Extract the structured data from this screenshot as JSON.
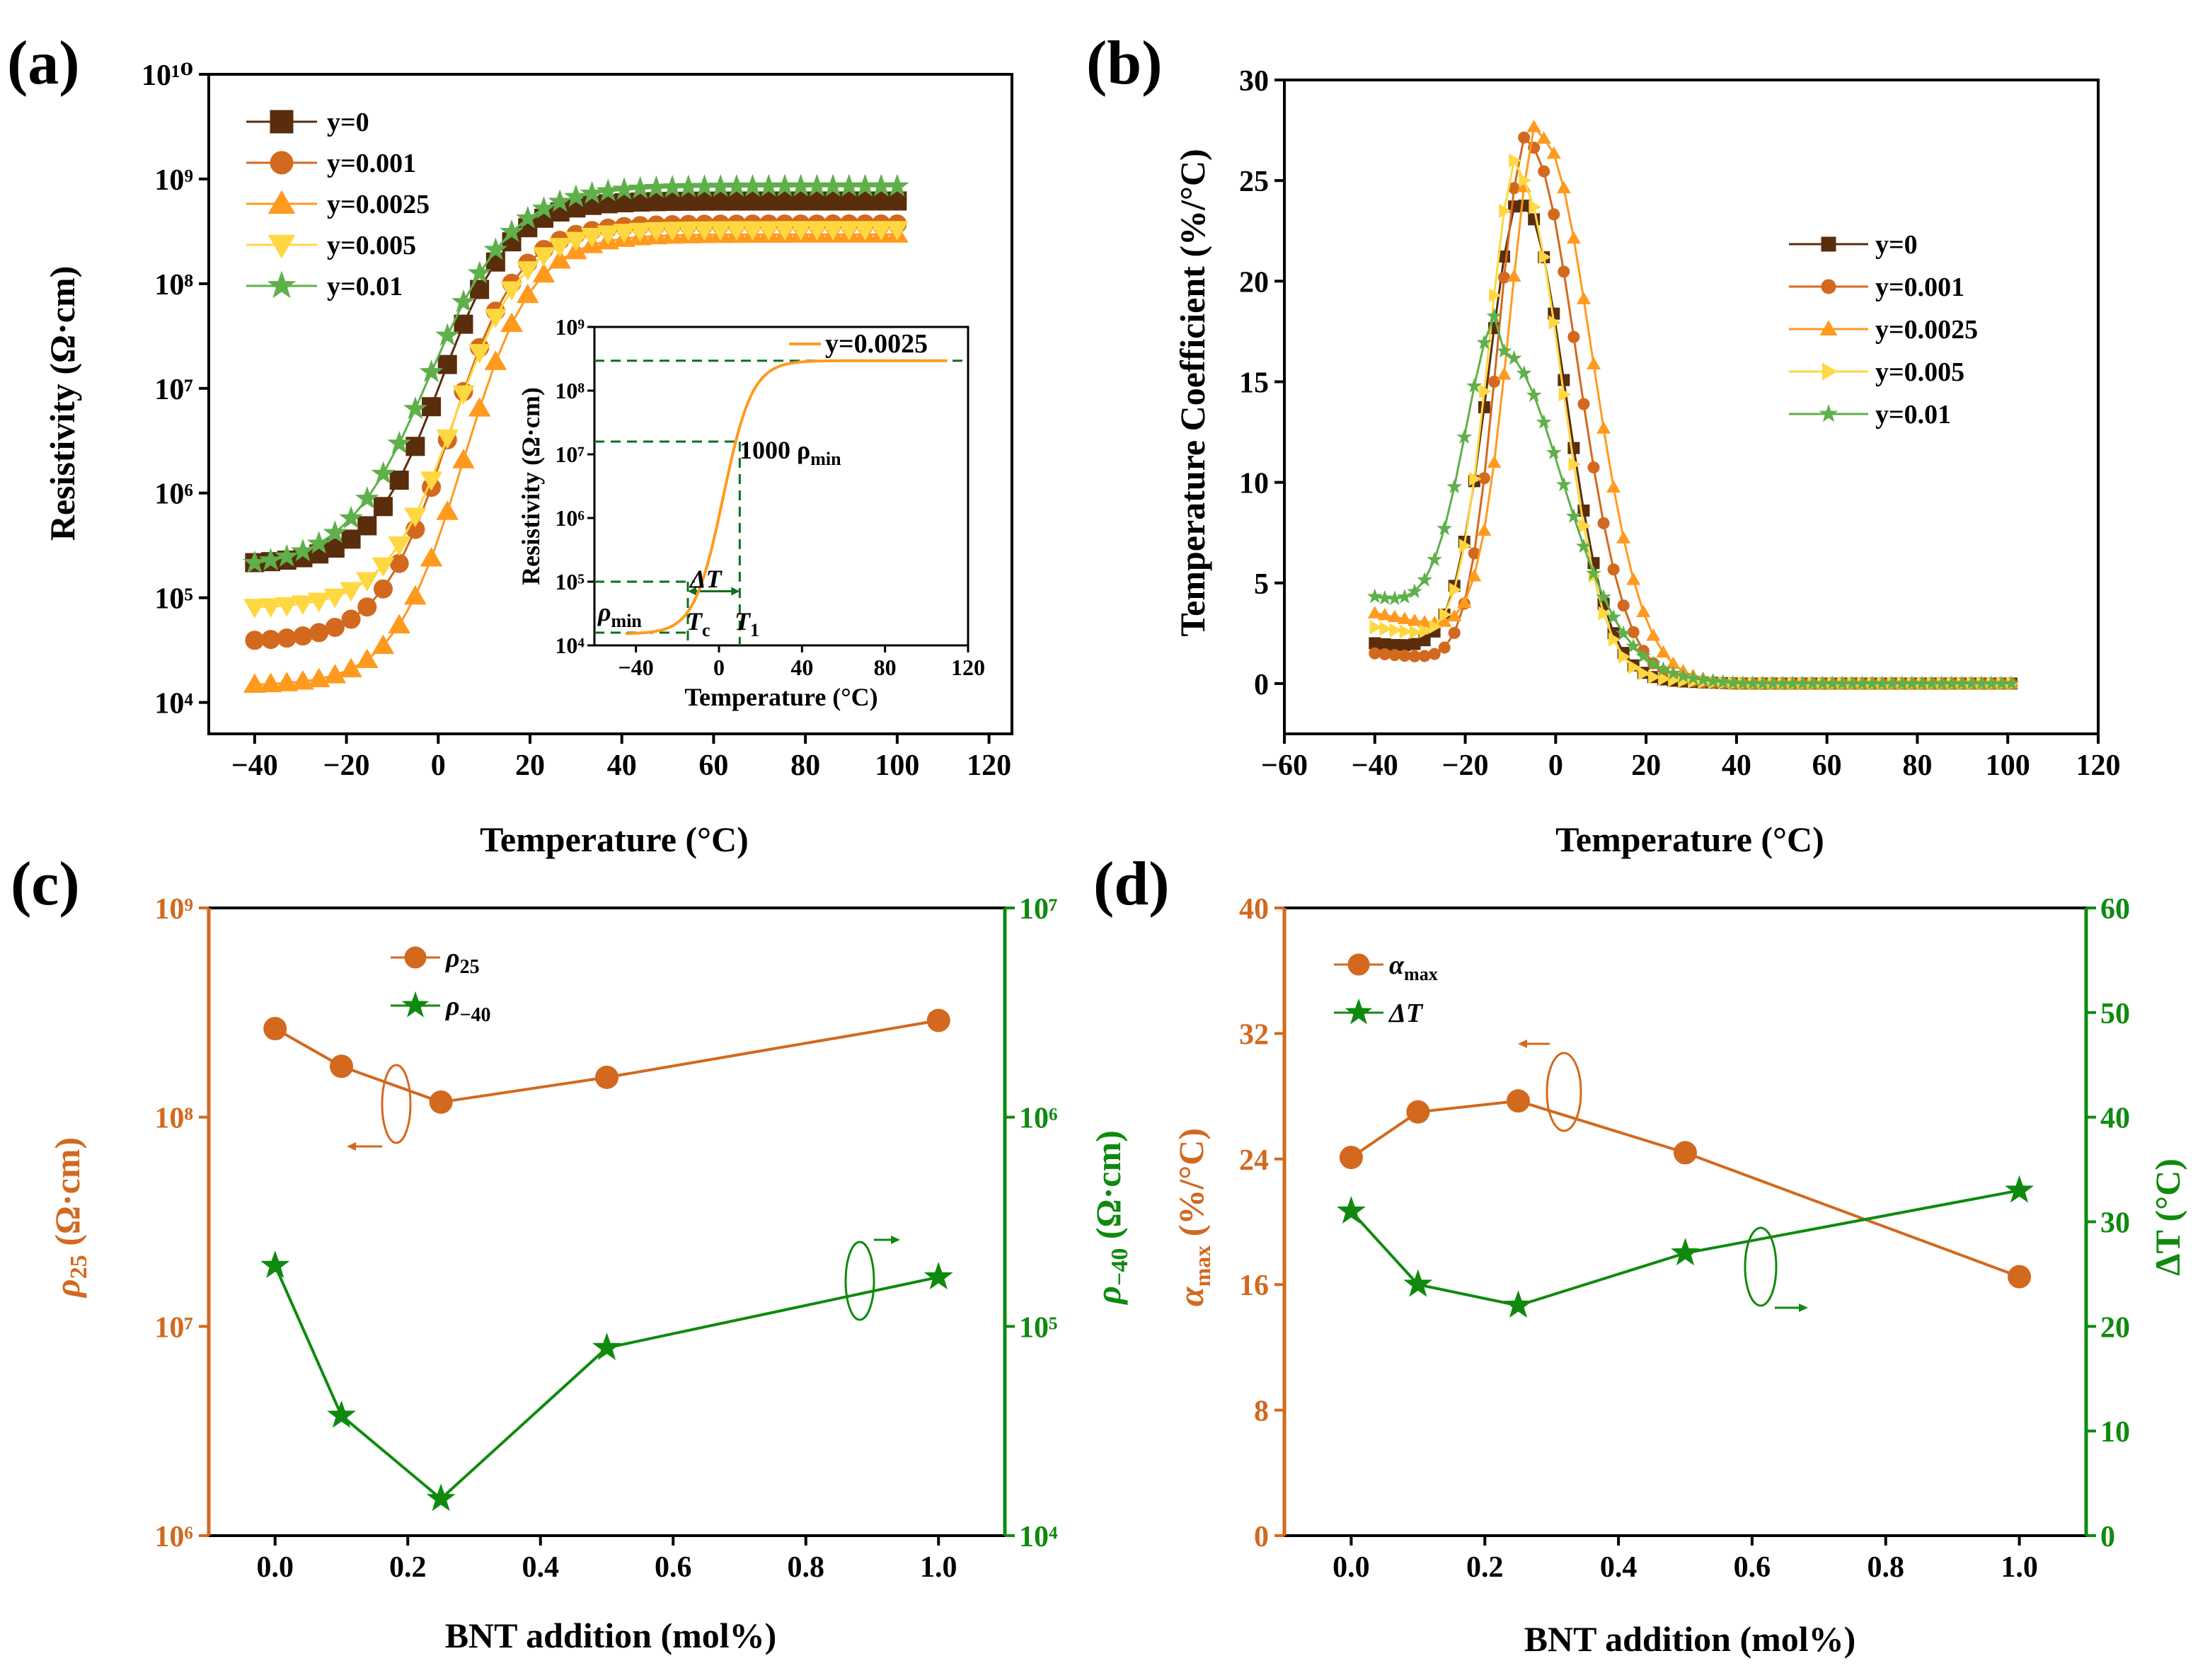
{
  "colors": {
    "y0": "#5a2d0c",
    "y0001": "#d2691e",
    "y00025": "#ff9a1f",
    "y0005": "#ffd740",
    "y001": "#5fb04a",
    "rho25": "#d2691e",
    "rho40": "#0f8a0f",
    "guide": "#0f6e1e"
  },
  "panel_labels": [
    "(a)",
    "(b)",
    "(c)",
    "(d)"
  ],
  "chart_data": [
    {
      "id": "a",
      "type": "line",
      "title": "",
      "xlabel": "Temperature (°C)",
      "ylabel": "Resistivity (Ω·cm)",
      "xlim": [
        -50,
        125
      ],
      "xticks": [
        -40,
        -20,
        0,
        20,
        40,
        60,
        80,
        100,
        120
      ],
      "ylim_log10": [
        3.7,
        10
      ],
      "yticks_log10": [
        4,
        5,
        6,
        7,
        8,
        9,
        10
      ],
      "ytick_labels": [
        "10⁴",
        "10⁵",
        "10⁶",
        "10⁷",
        "10⁸",
        "10⁹",
        "10¹⁰"
      ],
      "scale": "log10",
      "legend_position": "upper-left",
      "series": [
        {
          "name": "y=0",
          "color_key": "y0",
          "marker": "square",
          "low_log10": 5.32,
          "high_log10": 8.79,
          "Tc": 0.5,
          "width": 7.5
        },
        {
          "name": "y=0.001",
          "color_key": "y0001",
          "marker": "circle",
          "low_log10": 4.58,
          "high_log10": 8.57,
          "Tc": 2.5,
          "width": 7.5
        },
        {
          "name": "y=0.0025",
          "color_key": "y00025",
          "marker": "triangle-up",
          "low_log10": 4.16,
          "high_log10": 8.47,
          "Tc": 5.5,
          "width": 7.5
        },
        {
          "name": "y=0.005",
          "color_key": "y0005",
          "marker": "triangle-down",
          "low_log10": 4.9,
          "high_log10": 8.52,
          "Tc": 3.5,
          "width": 7.5
        },
        {
          "name": "y=0.01",
          "color_key": "y001",
          "marker": "star",
          "low_log10": 5.28,
          "high_log10": 8.93,
          "Tc": -2.0,
          "width": 9.0
        }
      ],
      "inset": {
        "legend": "y=0.0025",
        "xlabel": "Temperature (°C)",
        "ylabel": "Resistivity (Ω·cm)",
        "xlim": [
          -60,
          120
        ],
        "xticks": [
          -40,
          0,
          40,
          80,
          120
        ],
        "ylim_log10": [
          4,
          9
        ],
        "yticks_log10": [
          4,
          5,
          6,
          7,
          8,
          9
        ],
        "ytick_labels": [
          "10⁴",
          "10⁵",
          "10⁶",
          "10⁷",
          "10⁸",
          "10⁹"
        ],
        "curve": {
          "low_log10": 4.18,
          "high_log10": 8.47,
          "Tc": 2.0,
          "width": 7.0,
          "x_start": -45,
          "x_end": 110
        },
        "annotations": {
          "rho_min": "ρ",
          "rho_min_sub": "min",
          "thousand_rho_min": "1000 ρ",
          "thousand_rho_min_sub": "min",
          "delta_t": "ΔT",
          "tc": "T",
          "tc_sub": "c",
          "t1": "T",
          "t1_sub": "1"
        },
        "guide_levels_log10": {
          "min": 4.2,
          "decade": 5.0,
          "thousand": 7.2,
          "max": 8.47
        },
        "guide_temps": {
          "Tc": -15,
          "T1": 10
        }
      }
    },
    {
      "id": "b",
      "type": "line",
      "title": "",
      "xlabel": "Temperature (°C)",
      "ylabel": "Temperature Coefficient (%/°C)",
      "xlim": [
        -60,
        120
      ],
      "xticks": [
        -60,
        -40,
        -20,
        0,
        20,
        40,
        60,
        80,
        100,
        120
      ],
      "ylim": [
        -2.5,
        30
      ],
      "yticks": [
        0,
        5,
        10,
        15,
        20,
        25,
        30
      ],
      "legend_position": "right",
      "series": [
        {
          "name": "y=0",
          "color_key": "y0",
          "marker": "square",
          "base": 2.0,
          "peak": 24.0,
          "peak_T": -7.0,
          "wl": 11.0,
          "wr": 13.0
        },
        {
          "name": "y=0.001",
          "color_key": "y0001",
          "marker": "circle",
          "base": 1.5,
          "peak": 27.0,
          "peak_T": -6.0,
          "wl": 9.5,
          "wr": 15.0
        },
        {
          "name": "y=0.0025",
          "color_key": "y00025",
          "marker": "triangle-up",
          "base": 3.5,
          "peak": 27.6,
          "peak_T": -3.0,
          "wl": 10.0,
          "wr": 15.5
        },
        {
          "name": "y=0.005",
          "color_key": "y0005",
          "marker": "triangle-right",
          "base": 2.8,
          "peak": 25.5,
          "peak_T": -8.0,
          "wl": 9.5,
          "wr": 13.0
        },
        {
          "name": "y=0.01",
          "color_key": "y001",
          "marker": "star",
          "base": 4.3,
          "peak": 17.0,
          "peak_T": -12.0,
          "wl": 11.0,
          "wr": 19.0
        }
      ]
    },
    {
      "id": "c",
      "type": "line",
      "title": "",
      "xlabel": "BNT addition (mol%)",
      "ylabel_left": "ρ",
      "ylabel_left_sub": "25",
      "ylabel_left_unit": " (Ω·cm)",
      "ylabel_right": "ρ",
      "ylabel_right_sub": "−40",
      "ylabel_right_unit": " (Ω·cm)",
      "xlim": [
        -0.1,
        1.1
      ],
      "xticks": [
        0.0,
        0.2,
        0.4,
        0.6,
        0.8,
        1.0
      ],
      "xtick_labels": [
        "0.0",
        "0.2",
        "0.4",
        "0.6",
        "0.8",
        "1.0"
      ],
      "ylim_left_log10": [
        6,
        9
      ],
      "yticks_left_log10": [
        6,
        7,
        8,
        9
      ],
      "ytick_left_labels": [
        "10⁶",
        "10⁷",
        "10⁸",
        "10⁹"
      ],
      "ylim_right_log10": [
        4,
        7
      ],
      "yticks_right_log10": [
        4,
        5,
        6,
        7
      ],
      "ytick_right_labels": [
        "10⁴",
        "10⁵",
        "10⁶",
        "10⁷"
      ],
      "legend_position": "top-center",
      "series": [
        {
          "name": "ρ",
          "name_sub": "25",
          "axis": "left",
          "color_key": "rho25",
          "marker": "circle",
          "x": [
            0.0,
            0.1,
            0.25,
            0.5,
            1.0
          ],
          "values": [
            265000000.0,
            175000000.0,
            118000000.0,
            155000000.0,
            290000000.0
          ]
        },
        {
          "name": "ρ",
          "name_sub": "−40",
          "axis": "right",
          "color_key": "rho40",
          "marker": "star",
          "x": [
            0.0,
            0.1,
            0.25,
            0.5,
            1.0
          ],
          "values": [
            195000.0,
            37500.0,
            15000.0,
            79000.0,
            172000.0
          ]
        }
      ]
    },
    {
      "id": "d",
      "type": "line",
      "title": "",
      "xlabel": "BNT addition (mol%)",
      "ylabel_left": "α",
      "ylabel_left_sub": "max",
      "ylabel_left_unit": " (%/°C)",
      "ylabel_right": "ΔT",
      "ylabel_right_unit": " (°C)",
      "xlim": [
        -0.1,
        1.1
      ],
      "xticks": [
        0.0,
        0.2,
        0.4,
        0.6,
        0.8,
        1.0
      ],
      "xtick_labels": [
        "0.0",
        "0.2",
        "0.4",
        "0.6",
        "0.8",
        "1.0"
      ],
      "ylim_left": [
        0,
        40
      ],
      "yticks_left": [
        0,
        8,
        16,
        24,
        32,
        40
      ],
      "ylim_right": [
        0,
        60
      ],
      "yticks_right": [
        0,
        10,
        20,
        30,
        40,
        50,
        60
      ],
      "legend_position": "top-left",
      "series": [
        {
          "name": "α",
          "name_sub": "max",
          "axis": "left",
          "color_key": "rho25",
          "marker": "circle",
          "x": [
            0.0,
            0.1,
            0.25,
            0.5,
            1.0
          ],
          "values": [
            24.1,
            27.0,
            27.7,
            24.4,
            16.5
          ]
        },
        {
          "name": "ΔT",
          "axis": "right",
          "color_key": "rho40",
          "marker": "star",
          "x": [
            0.0,
            0.1,
            0.25,
            0.5,
            1.0
          ],
          "values": [
            31.0,
            24.0,
            22.0,
            27.0,
            33.0
          ]
        }
      ]
    }
  ]
}
